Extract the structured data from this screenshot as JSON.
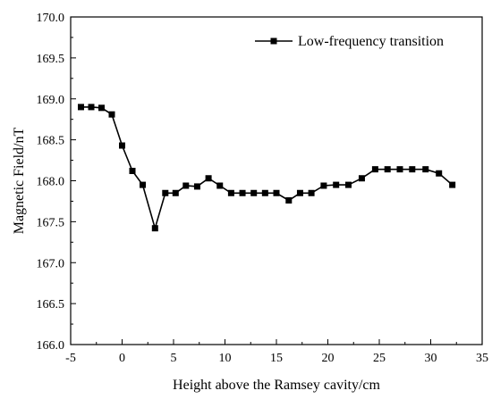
{
  "chart_data": {
    "type": "line",
    "title": "",
    "xlabel": "Height above the Ramsey cavity/cm",
    "ylabel": "Magnetic Field/nT",
    "xlim": [
      -5,
      35
    ],
    "ylim": [
      166.0,
      170.0
    ],
    "xticks": [
      -5,
      0,
      5,
      10,
      15,
      20,
      25,
      30,
      35
    ],
    "xtick_labels": [
      "-5",
      "0",
      "5",
      "10",
      "15",
      "20",
      "25",
      "30",
      "35"
    ],
    "yticks": [
      166.0,
      166.5,
      167.0,
      167.5,
      168.0,
      168.5,
      169.0,
      169.5,
      170.0
    ],
    "ytick_labels": [
      "166.0",
      "166.5",
      "167.0",
      "167.5",
      "168.0",
      "168.5",
      "169.0",
      "169.5",
      "170.0"
    ],
    "grid": false,
    "legend_position": "top-right",
    "series": [
      {
        "name": "Low-frequency transition",
        "color": "#000000",
        "marker": "square",
        "x": [
          -4.0,
          -3.0,
          -2.0,
          -1.0,
          0.0,
          1.0,
          2.0,
          3.2,
          4.2,
          5.2,
          6.2,
          7.3,
          8.4,
          9.5,
          10.6,
          11.7,
          12.8,
          13.9,
          15.0,
          16.2,
          17.3,
          18.4,
          19.6,
          20.8,
          22.0,
          23.3,
          24.6,
          25.8,
          27.0,
          28.2,
          29.5,
          30.8,
          32.1
        ],
        "y": [
          168.9,
          168.9,
          168.89,
          168.81,
          168.43,
          168.12,
          167.95,
          167.42,
          167.85,
          167.85,
          167.94,
          167.93,
          168.03,
          167.94,
          167.85,
          167.85,
          167.85,
          167.85,
          167.85,
          167.76,
          167.85,
          167.85,
          167.94,
          167.95,
          167.95,
          168.03,
          168.14,
          168.14,
          168.14,
          168.14,
          168.14,
          168.09,
          167.95
        ]
      }
    ]
  }
}
